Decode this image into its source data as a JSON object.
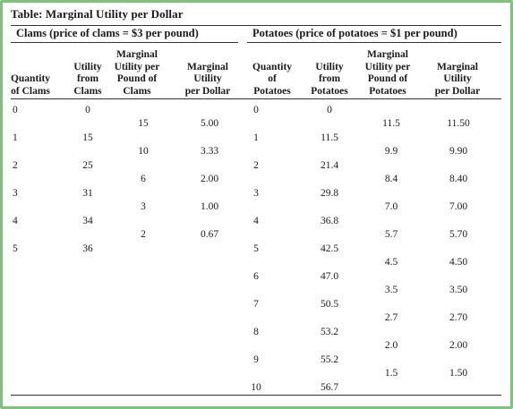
{
  "title": "Table: Marginal Utility per Dollar",
  "groups": {
    "clams": "Clams (price of clams = $3 per pound)",
    "potatoes": "Potatoes (price of potatoes = $1 per pound)"
  },
  "headers": {
    "qty_clams": [
      "Quantity",
      "of Clams"
    ],
    "util_clams": [
      "Utility",
      "from",
      "Clams"
    ],
    "mu_clams": [
      "Marginal",
      "Utility per",
      "Pound of",
      "Clams"
    ],
    "mupd_clams": [
      "Marginal",
      "Utility",
      "per Dollar"
    ],
    "qty_pot": [
      "Quantity",
      "of",
      "Potatoes"
    ],
    "util_pot": [
      "Utility",
      "from",
      "Potatoes"
    ],
    "mu_pot": [
      "Marginal",
      "Utility per",
      "Pound of",
      "Potatoes"
    ],
    "mupd_pot": [
      "Marginal",
      "Utility",
      "per Dollar"
    ]
  },
  "clams": {
    "quantity": [
      "0",
      "1",
      "2",
      "3",
      "4",
      "5"
    ],
    "utility": [
      "0",
      "15",
      "25",
      "31",
      "34",
      "36"
    ],
    "marginal_utility": [
      "15",
      "10",
      "6",
      "3",
      "2"
    ],
    "mu_per_dollar": [
      "5.00",
      "3.33",
      "2.00",
      "1.00",
      "0.67"
    ]
  },
  "potatoes": {
    "quantity": [
      "0",
      "1",
      "2",
      "3",
      "4",
      "5",
      "6",
      "7",
      "8",
      "9",
      "10"
    ],
    "utility": [
      "0",
      "11.5",
      "21.4",
      "29.8",
      "36.8",
      "42.5",
      "47.0",
      "50.5",
      "53.2",
      "55.2",
      "56.7"
    ],
    "marginal_utility": [
      "11.5",
      "9.9",
      "8.4",
      "7.0",
      "5.7",
      "4.5",
      "3.5",
      "2.7",
      "2.0",
      "1.5"
    ],
    "mu_per_dollar": [
      "11.50",
      "9.90",
      "8.40",
      "7.00",
      "5.70",
      "4.50",
      "3.50",
      "2.70",
      "2.00",
      "1.50"
    ]
  }
}
